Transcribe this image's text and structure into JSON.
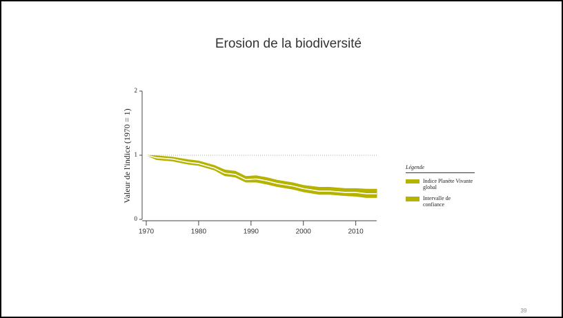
{
  "chart_data": {
    "type": "line",
    "title": "Erosion de la biodiversité",
    "y_label": "Valeur de l'indice (1970 = 1)",
    "x": [
      1970,
      1972,
      1975,
      1978,
      1980,
      1983,
      1985,
      1987,
      1989,
      1991,
      1993,
      1995,
      1998,
      2000,
      2003,
      2005,
      2008,
      2010,
      2012,
      2014
    ],
    "series": [
      {
        "name": "Indice Planète Vivante global",
        "color": "#ffffff",
        "values": [
          1.0,
          0.96,
          0.94,
          0.89,
          0.87,
          0.8,
          0.72,
          0.7,
          0.62,
          0.63,
          0.6,
          0.56,
          0.52,
          0.48,
          0.44,
          0.44,
          0.42,
          0.42,
          0.4,
          0.4
        ]
      }
    ],
    "band": {
      "name": "Intervalle de confiance",
      "color": "#b5b300",
      "lower": [
        1.0,
        0.93,
        0.91,
        0.86,
        0.84,
        0.77,
        0.68,
        0.66,
        0.58,
        0.58,
        0.55,
        0.51,
        0.47,
        0.43,
        0.39,
        0.39,
        0.37,
        0.36,
        0.34,
        0.34
      ],
      "upper": [
        1.0,
        0.99,
        0.97,
        0.93,
        0.91,
        0.84,
        0.77,
        0.75,
        0.67,
        0.68,
        0.65,
        0.61,
        0.57,
        0.53,
        0.5,
        0.5,
        0.48,
        0.48,
        0.47,
        0.47
      ]
    },
    "reference_line": 1,
    "xlim": [
      1970,
      2014
    ],
    "ylim": [
      0,
      2
    ],
    "xticks": [
      1970,
      1980,
      1990,
      2000,
      2010
    ],
    "yticks": [
      0,
      1,
      2
    ],
    "legend_title": "Légende"
  },
  "page_number": "39"
}
